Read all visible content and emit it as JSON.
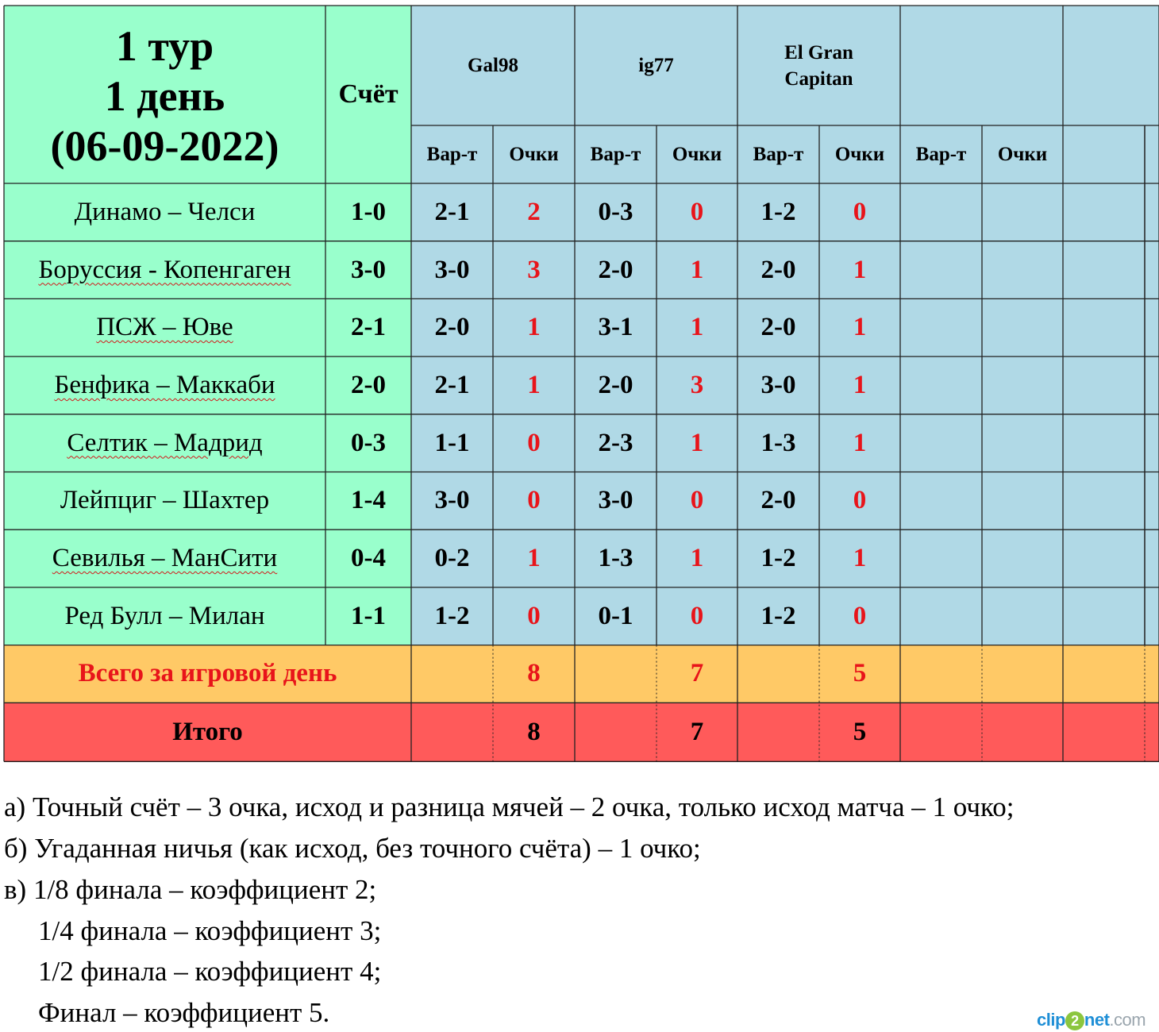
{
  "header": {
    "title_lines": [
      "1 тур",
      "1 день",
      "(06-09-2022)"
    ],
    "score_label": "Счёт",
    "players": [
      "Gal98",
      "ig77",
      "El Gran Capitan",
      "",
      ""
    ],
    "col_guess_label": "Вар-т",
    "col_points_label": "Очки"
  },
  "matches": [
    {
      "teams": "Динамо – Челси",
      "score": "1-0",
      "picks": [
        [
          "2-1",
          "2"
        ],
        [
          "0-3",
          "0"
        ],
        [
          "1-2",
          "0"
        ]
      ]
    },
    {
      "teams": "Боруссия - Копенгаген",
      "score": "3-0",
      "picks": [
        [
          "3-0",
          "3"
        ],
        [
          "2-0",
          "1"
        ],
        [
          "2-0",
          "1"
        ]
      ]
    },
    {
      "teams": "ПСЖ – Юве",
      "score": "2-1",
      "picks": [
        [
          "2-0",
          "1"
        ],
        [
          "3-1",
          "1"
        ],
        [
          "2-0",
          "1"
        ]
      ]
    },
    {
      "teams": "Бенфика – Маккаби",
      "score": "2-0",
      "picks": [
        [
          "2-1",
          "1"
        ],
        [
          "2-0",
          "3"
        ],
        [
          "3-0",
          "1"
        ]
      ]
    },
    {
      "teams": "Селтик – Мадрид",
      "score": "0-3",
      "picks": [
        [
          "1-1",
          "0"
        ],
        [
          "2-3",
          "1"
        ],
        [
          "1-3",
          "1"
        ]
      ]
    },
    {
      "teams": "Лейпциг – Шахтер",
      "score": "1-4",
      "picks": [
        [
          "3-0",
          "0"
        ],
        [
          "3-0",
          "0"
        ],
        [
          "2-0",
          "0"
        ]
      ]
    },
    {
      "teams": "Севилья – МанСити",
      "score": "0-4",
      "picks": [
        [
          "0-2",
          "1"
        ],
        [
          "1-3",
          "1"
        ],
        [
          "1-2",
          "1"
        ]
      ]
    },
    {
      "teams": "Ред Булл – Милан",
      "score": "1-1",
      "picks": [
        [
          "1-2",
          "0"
        ],
        [
          "0-1",
          "0"
        ],
        [
          "1-2",
          "0"
        ]
      ]
    }
  ],
  "day_total": {
    "label": "Всего за игровой день",
    "points": [
      "8",
      "7",
      "5"
    ]
  },
  "grand_total": {
    "label": "Итого",
    "points": [
      "8",
      "7",
      "5"
    ]
  },
  "rules": [
    {
      "prefix": "а) ",
      "text": "Точный счёт – 3 очка, исход и разница мячей – 2 очка, только исход матча – 1 очко;"
    },
    {
      "prefix": "б) ",
      "text": "Угаданная ничья (как исход, без точного счёта) – 1 очко;"
    },
    {
      "prefix": "в) ",
      "text": "1/8 финала – коэффициент 2;"
    },
    {
      "prefix": "",
      "text": "1/4 финала – коэффициент 3;"
    },
    {
      "prefix": "",
      "text": "1/2 финала – коэффициент 4;"
    },
    {
      "prefix": "",
      "text": "Финал – коэффициент 5."
    }
  ],
  "watermark": {
    "part1": "clip",
    "part2": "2",
    "part3": "net",
    "part4": ".com"
  },
  "colors": {
    "green": "#99ffcc",
    "blue": "#b0d9e6",
    "orange": "#ffc966",
    "red_row": "#ff5a5a",
    "points_red": "#e8141a"
  }
}
